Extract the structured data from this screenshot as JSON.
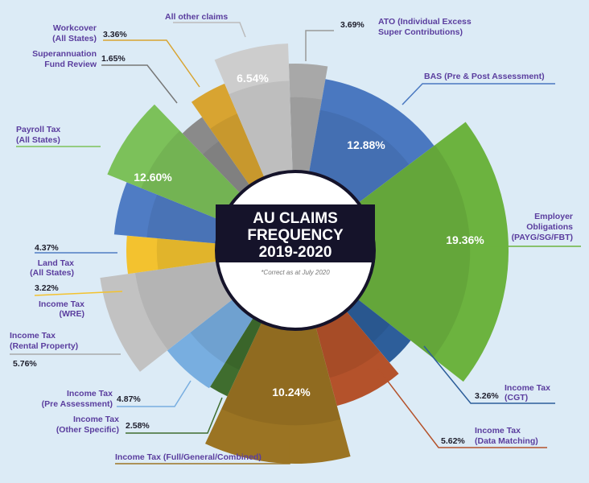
{
  "chart_data": {
    "type": "pie",
    "variant": "polar-area",
    "title_lines": [
      "AU CLAIMS",
      "FREQUENCY",
      "2019-2020"
    ],
    "subtitle": "*Correct as at July 2020",
    "series": [
      {
        "label_lines": [
          "ATO (Individual Excess",
          "Super Contributions)"
        ],
        "value": 3.69,
        "display": "3.69%",
        "color": "#a8a8a8"
      },
      {
        "label_lines": [
          "BAS (Pre & Post Assessment)"
        ],
        "value": 12.88,
        "display": "12.88%",
        "color": "#4a78c0"
      },
      {
        "label_lines": [
          "Employer",
          "Obligations",
          "(PAYG/SG/FBT)"
        ],
        "value": 19.36,
        "display": "19.36%",
        "color": "#6cb33f"
      },
      {
        "label_lines": [
          "Income Tax",
          "(CGT)"
        ],
        "value": 3.26,
        "display": "3.26%",
        "color": "#2d5e9a"
      },
      {
        "label_lines": [
          "Income Tax",
          "(Data Matching)"
        ],
        "value": 5.62,
        "display": "5.62%",
        "color": "#b4522b"
      },
      {
        "label_lines": [
          "Income Tax (Full/General/Combined)"
        ],
        "value": 10.24,
        "display": "10.24%",
        "color": "#9b7423"
      },
      {
        "label_lines": [
          "Income Tax",
          "(Other Specific)"
        ],
        "value": 2.58,
        "display": "2.58%",
        "color": "#3f6d2e"
      },
      {
        "label_lines": [
          "Income Tax",
          "(Pre Assessment)"
        ],
        "value": 4.87,
        "display": "4.87%",
        "color": "#78aee0"
      },
      {
        "label_lines": [
          "Income Tax",
          "(Rental Property)"
        ],
        "value": 5.76,
        "display": "5.76%",
        "color": "#c2c2c2"
      },
      {
        "label_lines": [
          "Income Tax",
          "(WRE)"
        ],
        "value": 3.22,
        "display": "3.22%",
        "color": "#f3c22f"
      },
      {
        "label_lines": [
          "Land Tax",
          "(All States)"
        ],
        "value": 4.37,
        "display": "4.37%",
        "color": "#4f7cc4"
      },
      {
        "label_lines": [
          "Payroll Tax",
          "(All States)"
        ],
        "value": 12.6,
        "display": "12.60%",
        "color": "#7cc15a"
      },
      {
        "label_lines": [
          "Superannuation",
          "Fund Review"
        ],
        "value": 1.65,
        "display": "1.65%",
        "color": "#8a8a8a"
      },
      {
        "label_lines": [
          "Workcover",
          "(All States)"
        ],
        "value": 3.36,
        "display": "3.36%",
        "color": "#d8a431"
      },
      {
        "label_lines": [
          "All other claims"
        ],
        "value": 6.54,
        "display": "6.54%",
        "color": "#cdcdcd"
      }
    ],
    "legend": "none"
  }
}
